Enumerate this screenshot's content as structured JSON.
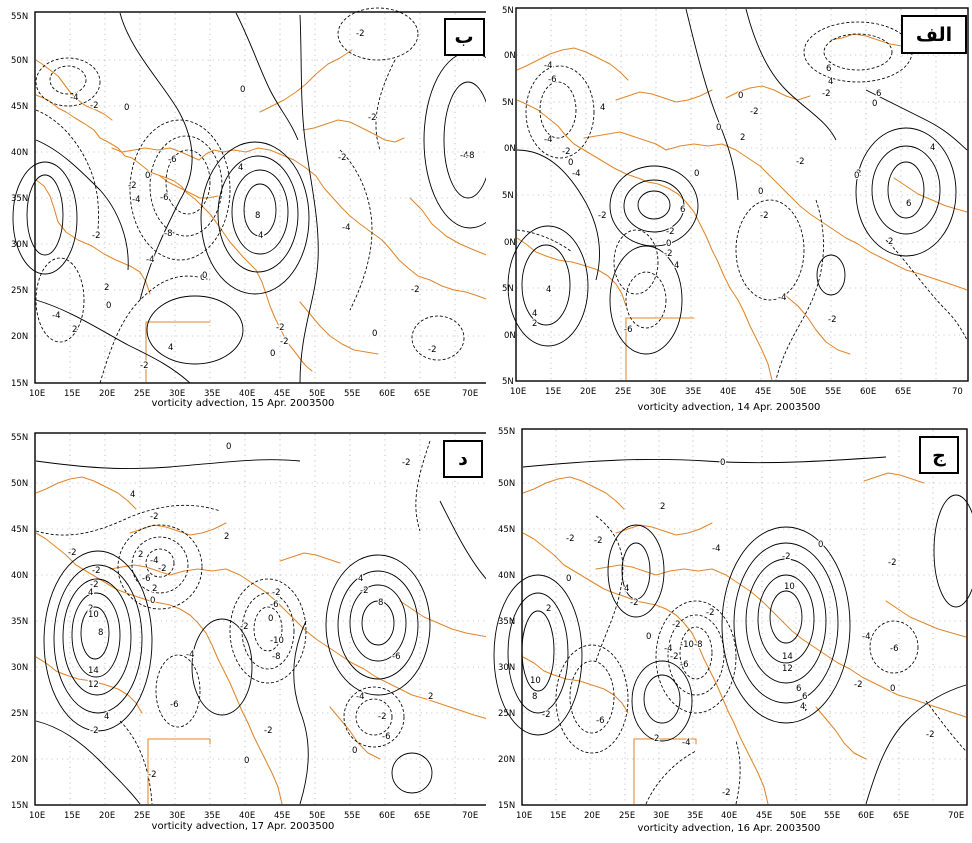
{
  "colors": {
    "coastline": "#e0872a",
    "contour": "#000000",
    "grid": "#9a9a9a",
    "background": "#ffffff"
  },
  "panels": [
    {
      "id": "b",
      "letter": "ب",
      "caption": "vorticity advection, 15 Apr. 2003500",
      "lon_labels": [
        "10E",
        "15E",
        "20E",
        "25E",
        "30E",
        "35E",
        "40E",
        "45E",
        "50E",
        "55E",
        "60E",
        "65E",
        "70E"
      ],
      "lat_labels": [
        "15N",
        "20N",
        "25N",
        "30N",
        "35N",
        "40N",
        "45N",
        "50N",
        "55N"
      ],
      "contour_labels": [
        "-2",
        "0",
        "-4",
        "-2",
        "0",
        "-2",
        "-6",
        "-2",
        "-4",
        "0",
        "-8",
        "-2",
        "4",
        "-4",
        "-6",
        "-4",
        "4",
        "8",
        "-8",
        "-2",
        "0",
        "-4",
        "2",
        "0",
        "2",
        "4",
        "-2",
        "-4",
        "-2",
        "-2",
        "0",
        "-2",
        "0",
        "-2",
        "0"
      ]
    },
    {
      "id": "alef",
      "letter": "الف",
      "caption": "vorticity advection, 14 Apr. 2003500",
      "lon_labels": [
        "10E",
        "15E",
        "20E",
        "25E",
        "30E",
        "35E",
        "40E",
        "45E",
        "50E",
        "55E",
        "60E",
        "65E",
        "70"
      ],
      "lat_labels": [
        "5N",
        "0N",
        "5N",
        "0N",
        "5N",
        "0N",
        "5N",
        "0N",
        "5N"
      ],
      "contour_labels": [
        "-4",
        "-6",
        "0",
        "-2",
        "6",
        "4",
        "-4",
        "-2",
        "4",
        "0",
        "-4",
        "6",
        "0",
        "-2",
        "0",
        "2",
        "2",
        "4",
        "-2",
        "0",
        "0",
        "-2",
        "0",
        "6",
        "-2",
        "-2",
        "2",
        "6",
        "4",
        "4",
        "-6",
        "-4",
        "2",
        "-2",
        "0",
        "-2",
        "4"
      ]
    },
    {
      "id": "dal",
      "letter": "د",
      "caption": "vorticity advection, 17 Apr. 2003500",
      "lon_labels": [
        "10E",
        "15E",
        "20E",
        "25E",
        "30E",
        "35E",
        "40E",
        "45E",
        "50E",
        "55E",
        "60E",
        "65E",
        "70E"
      ],
      "lat_labels": [
        "15N",
        "20N",
        "25N",
        "30N",
        "35N",
        "40N",
        "45N",
        "50N",
        "55N"
      ],
      "contour_labels": [
        "0",
        "-2",
        "4",
        "-2",
        "2",
        "-2",
        "2",
        "-4",
        "-2",
        "-6",
        "2",
        "0",
        "-2",
        "4",
        "-2",
        "2",
        "10",
        "8",
        "14",
        "12",
        "4",
        "-2",
        "-4",
        "-2",
        "-6",
        "0",
        "-2",
        "-10",
        "-8",
        "-6",
        "0",
        "-2",
        "4",
        "-2",
        "-6",
        "-4",
        "-2",
        "2",
        "0",
        "-2",
        "8",
        "-6"
      ]
    },
    {
      "id": "jim",
      "letter": "ج",
      "caption": "vorticity advection, 16 Apr. 2003500",
      "lon_labels": [
        "10E",
        "15E",
        "20E",
        "25E",
        "30E",
        "35E",
        "40E",
        "45E",
        "50E",
        "55E",
        "60E",
        "65E",
        "70E"
      ],
      "lat_labels": [
        "15N",
        "20N",
        "25N",
        "30N",
        "35N",
        "40N",
        "45N",
        "50N",
        "55N"
      ],
      "contour_labels": [
        "0",
        "2",
        "-2",
        "-2",
        "0",
        "4",
        "-4",
        "-2",
        "2",
        "-2",
        "-8",
        "-10",
        "-2",
        "-6",
        "0",
        "-4",
        "-2",
        "-6",
        "10",
        "8",
        "-2",
        "2",
        "4",
        "6",
        "-2",
        "10",
        "14",
        "12",
        "-2",
        "0",
        "-6",
        "-4",
        "-2",
        "-2",
        "-4",
        "6",
        "4",
        "0",
        "-2"
      ]
    }
  ]
}
